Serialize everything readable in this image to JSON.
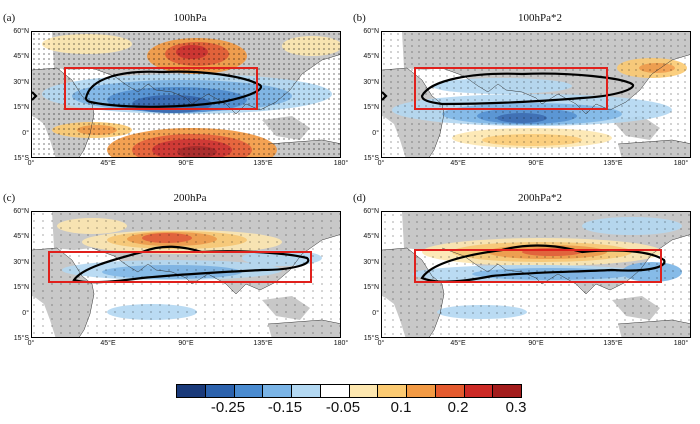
{
  "panels": [
    {
      "label": "(a)",
      "title": "100hPa"
    },
    {
      "label": "(b)",
      "title": "100hPa*2"
    },
    {
      "label": "(c)",
      "title": "200hPa"
    },
    {
      "label": "(d)",
      "title": "200hPa*2"
    }
  ],
  "lat_ticks": [
    "60°N",
    "45°N",
    "30°N",
    "15°N",
    "0°",
    "15°S"
  ],
  "lon_ticks": [
    "0°",
    "45°E",
    "90°E",
    "135°E",
    "180°"
  ],
  "colorbar": {
    "colors": [
      "#1a3a7a",
      "#2c62ad",
      "#4a8bd0",
      "#7ab4e6",
      "#b3d8f2",
      "#ffffff",
      "#fde7b0",
      "#fbca72",
      "#f29a44",
      "#e45a2e",
      "#cc2a26",
      "#a31c1c"
    ],
    "labels": [
      "-0.25",
      "-0.15",
      "-0.05",
      "0.1",
      "0.2",
      "0.3"
    ]
  },
  "colors": {
    "box": "#e0201c",
    "contour": "#000000",
    "land": "#c8c8c8"
  }
}
